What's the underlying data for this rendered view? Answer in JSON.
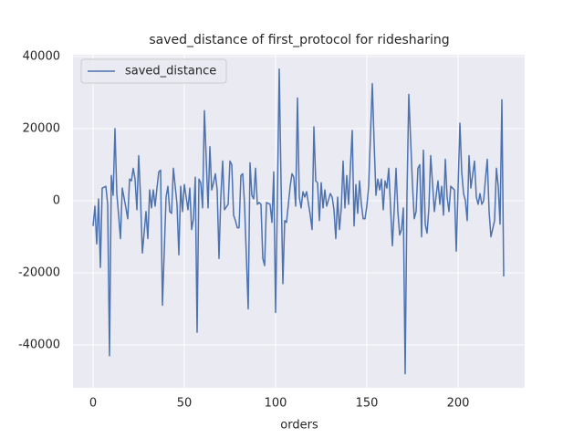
{
  "chart_data": {
    "type": "line",
    "title": "saved_distance of first_protocol for ridesharing",
    "x_label": "orders",
    "x": [
      0,
      1,
      2,
      3,
      4,
      5,
      7,
      8,
      9,
      10,
      11,
      12,
      13,
      14,
      15,
      16,
      18,
      19,
      20,
      21,
      22,
      23,
      24,
      25,
      26,
      27,
      29,
      30,
      31,
      32,
      33,
      34,
      35,
      36,
      37,
      38,
      40,
      41,
      42,
      43,
      44,
      45,
      46,
      47,
      48,
      49,
      50,
      52,
      53,
      54,
      55,
      56,
      57,
      58,
      59,
      60,
      61,
      63,
      64,
      65,
      66,
      67,
      68,
      69,
      70,
      71,
      72,
      74,
      75,
      76,
      77,
      78,
      79,
      80,
      81,
      82,
      83,
      85,
      86,
      87,
      88,
      89,
      90,
      91,
      92,
      93,
      94,
      95,
      97,
      98,
      99,
      100,
      101,
      102,
      103,
      104,
      105,
      106,
      108,
      109,
      110,
      111,
      112,
      113,
      114,
      115,
      116,
      117,
      119,
      120,
      121,
      122,
      123,
      124,
      125,
      126,
      127,
      128,
      130,
      131,
      132,
      133,
      134,
      135,
      136,
      137,
      138,
      139,
      140,
      142,
      143,
      144,
      145,
      146,
      147,
      148,
      149,
      150,
      151,
      153,
      154,
      155,
      156,
      157,
      158,
      159,
      160,
      161,
      162,
      164,
      165,
      166,
      167,
      168,
      169,
      170,
      171,
      172,
      173,
      175,
      176,
      177,
      178,
      179,
      180,
      181,
      182,
      183,
      184,
      185,
      187,
      188,
      189,
      190,
      191,
      192,
      193,
      194,
      195,
      196,
      198,
      199,
      200,
      201,
      202,
      203,
      204,
      205,
      206,
      207,
      209,
      210,
      211,
      212,
      213,
      214,
      215,
      216,
      217,
      218,
      220,
      221,
      222,
      223,
      224,
      225
    ],
    "series": [
      {
        "name": "saved_distance",
        "color": "#4c72b0",
        "values": [
          -7000,
          -1500,
          -12000,
          500,
          -18500,
          3500,
          4000,
          -1000,
          -43000,
          7000,
          1500,
          20000,
          2000,
          -4000,
          -10500,
          3500,
          -2000,
          -5000,
          6000,
          5500,
          9000,
          6000,
          -2500,
          12500,
          1000,
          -14500,
          -3000,
          -10500,
          3000,
          -2000,
          3000,
          -1500,
          3500,
          8000,
          8500,
          -29000,
          1000,
          4000,
          -3000,
          -3500,
          9000,
          4000,
          -1000,
          -15000,
          4000,
          -3000,
          4500,
          -2500,
          3500,
          -8000,
          -5000,
          6500,
          -36500,
          6000,
          5000,
          -2000,
          25000,
          -2000,
          15000,
          3000,
          5000,
          7500,
          3000,
          -16000,
          1000,
          11000,
          -2500,
          -1000,
          11000,
          10000,
          -4000,
          -5500,
          -7500,
          -7500,
          7000,
          7500,
          -1000,
          -30000,
          10500,
          1500,
          500,
          9000,
          -1000,
          -500,
          -1000,
          -16000,
          -18000,
          -500,
          -1000,
          -6000,
          8000,
          -31000,
          1000,
          36500,
          5000,
          -23000,
          -5500,
          -6000,
          4000,
          7500,
          6500,
          -1500,
          28500,
          1000,
          -2000,
          2500,
          1000,
          2500,
          -4000,
          -8000,
          20500,
          5500,
          5000,
          -5500,
          5000,
          -2000,
          3000,
          -1500,
          2000,
          1000,
          -2500,
          -10500,
          1000,
          -8000,
          -2000,
          11000,
          -2000,
          7000,
          -1000,
          19500,
          -7000,
          4500,
          -3500,
          5500,
          -1000,
          -5000,
          -5000,
          -1500,
          4000,
          32500,
          16000,
          1500,
          6000,
          3000,
          6000,
          -2500,
          5500,
          3500,
          9000,
          -12500,
          -2500,
          9000,
          -3000,
          -9500,
          -8000,
          -2000,
          -48000,
          1500,
          29500,
          4500,
          -5000,
          -3000,
          9000,
          10000,
          -10000,
          14000,
          -6500,
          -9000,
          -2000,
          12500,
          -3000,
          1500,
          5500,
          -1000,
          4000,
          -4000,
          11500,
          1000,
          -3000,
          4000,
          3000,
          -14000,
          3500,
          21500,
          8000,
          2000,
          0,
          -5500,
          12500,
          3500,
          11000,
          1000,
          -1000,
          2000,
          -1000,
          0,
          6000,
          11500,
          -3000,
          -10000,
          -5500,
          9000,
          4000,
          -6500,
          28000,
          -21000
        ]
      }
    ],
    "xlim": [
      -11,
      236.5
    ],
    "ylim": [
      -51900,
      40500
    ],
    "xticks": [
      0,
      50,
      100,
      150,
      200
    ],
    "yticks": [
      -40000,
      -20000,
      0,
      20000,
      40000
    ],
    "grid": true,
    "legend": "upper left"
  }
}
